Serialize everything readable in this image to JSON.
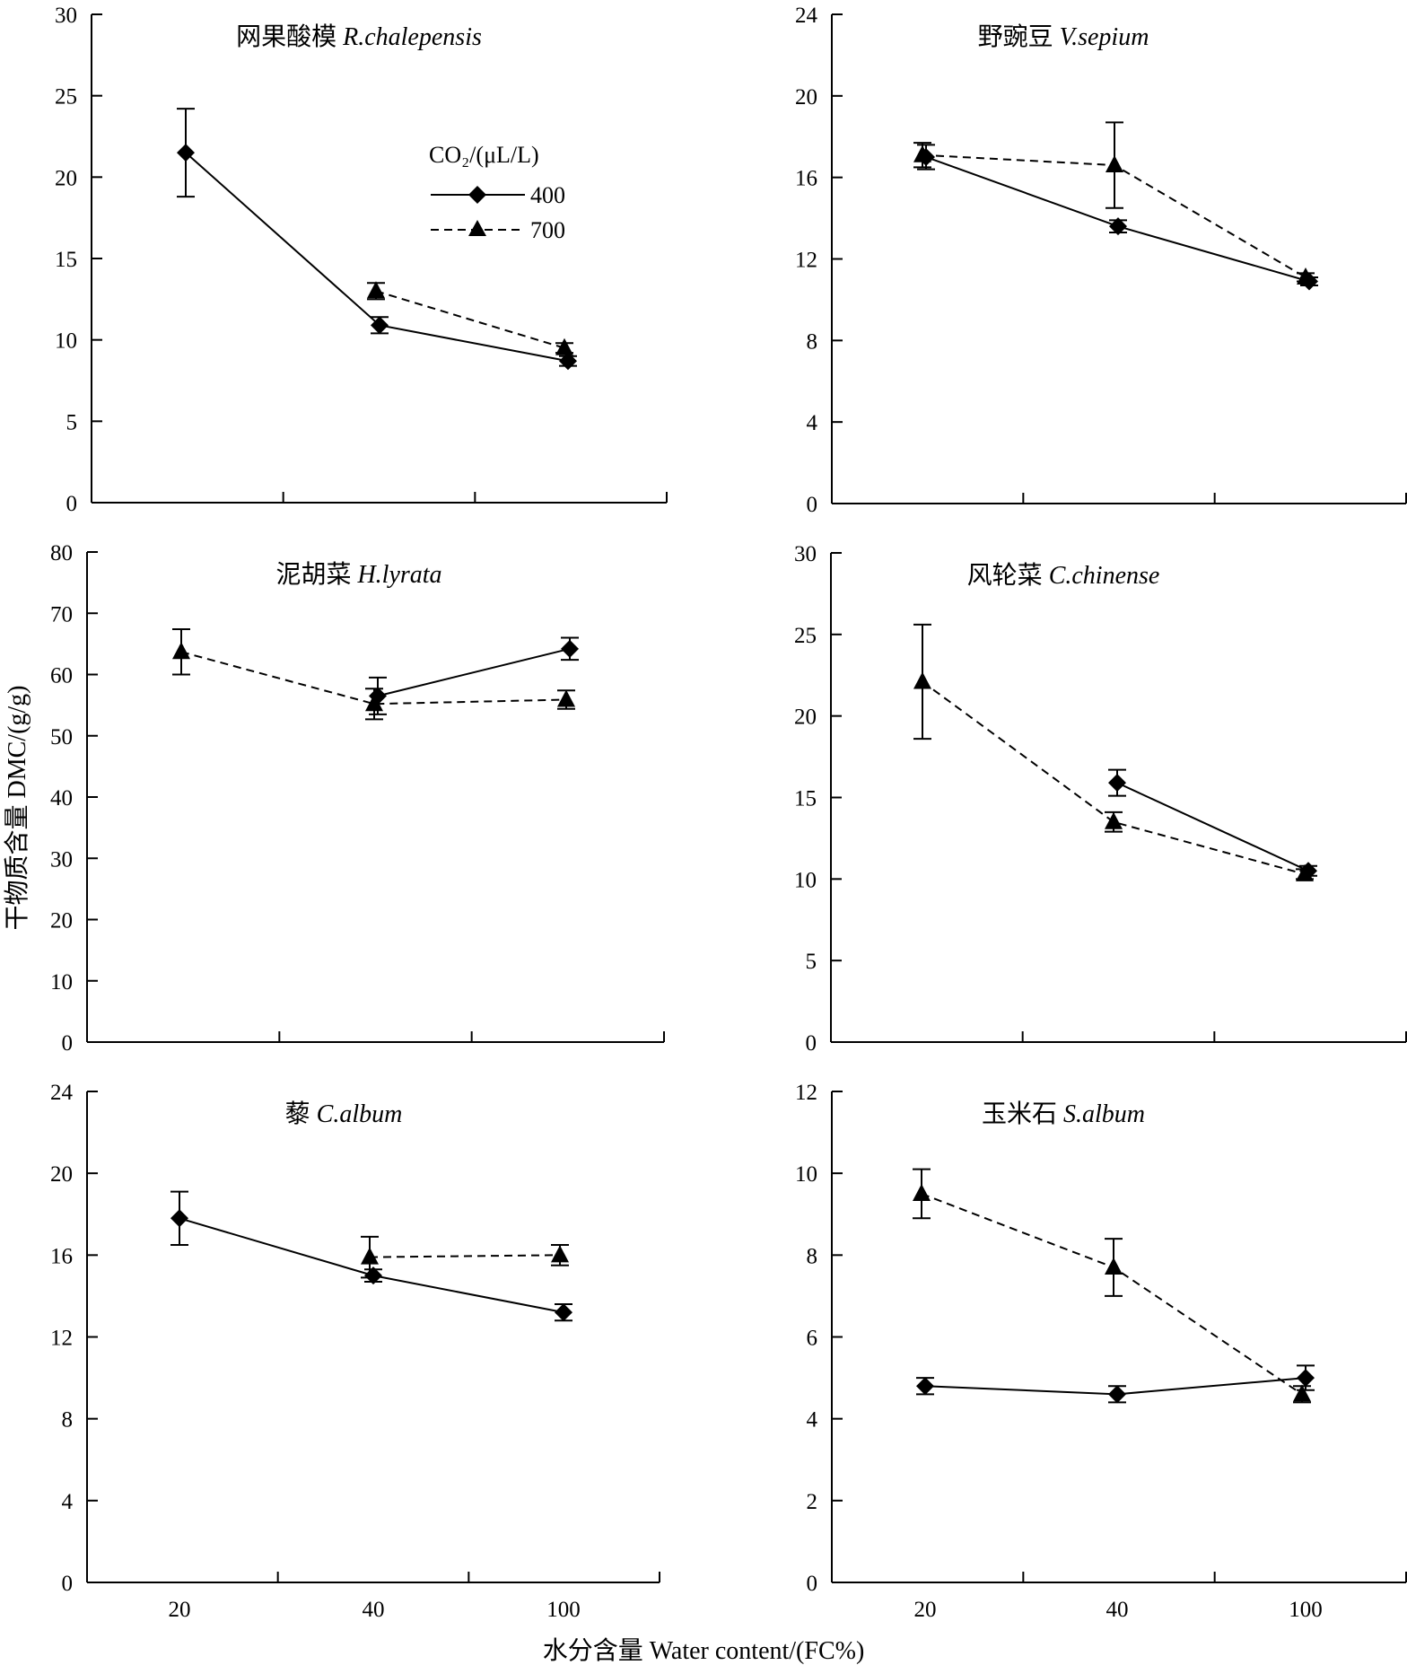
{
  "figure": {
    "ylabel": "干物质含量 DMC/(g/g)",
    "xlabel": "水分含量 Water content/(FC%)"
  },
  "legend": {
    "title": "CO₂/(μL/L)",
    "items": [
      {
        "label": "400",
        "marker": "diamond",
        "line": "solid"
      },
      {
        "label": "700",
        "marker": "triangle",
        "line": "dashed"
      }
    ]
  },
  "colors": {
    "marks": "#000000",
    "background": "#ffffff"
  },
  "chart_data": [
    {
      "type": "line",
      "title_cn": "网果酸模",
      "title_latin": "R.chalepensis",
      "categories": [
        "20",
        "40",
        "100"
      ],
      "ylim": [
        0,
        30
      ],
      "yticks": [
        0,
        5,
        10,
        15,
        20,
        25,
        30
      ],
      "series": [
        {
          "name": "400",
          "values": [
            21.5,
            10.9,
            8.7
          ],
          "errors": [
            2.7,
            0.5,
            0.3
          ]
        },
        {
          "name": "700",
          "values": [
            null,
            13.0,
            9.5
          ],
          "errors": [
            null,
            0.5,
            0.3
          ]
        }
      ]
    },
    {
      "type": "line",
      "title_cn": "野豌豆",
      "title_latin": "V.sepium",
      "categories": [
        "20",
        "40",
        "100"
      ],
      "ylim": [
        0,
        24
      ],
      "yticks": [
        0,
        4,
        8,
        12,
        16,
        20,
        24
      ],
      "series": [
        {
          "name": "400",
          "values": [
            17.0,
            13.6,
            10.9
          ],
          "errors": [
            0.6,
            0.3,
            0.2
          ]
        },
        {
          "name": "700",
          "values": [
            17.1,
            16.6,
            11.1
          ],
          "errors": [
            0.6,
            2.1,
            0.2
          ]
        }
      ]
    },
    {
      "type": "line",
      "title_cn": "泥胡菜",
      "title_latin": "H.lyrata",
      "categories": [
        "20",
        "40",
        "100"
      ],
      "ylim": [
        0,
        80
      ],
      "yticks": [
        0,
        10,
        20,
        30,
        40,
        50,
        60,
        70,
        80
      ],
      "series": [
        {
          "name": "400",
          "values": [
            null,
            56.5,
            64.2
          ],
          "errors": [
            null,
            3.0,
            1.8
          ]
        },
        {
          "name": "700",
          "values": [
            63.7,
            55.2,
            55.9
          ],
          "errors": [
            3.7,
            2.5,
            1.5
          ]
        }
      ]
    },
    {
      "type": "line",
      "title_cn": "风轮菜",
      "title_latin": "C.chinense",
      "categories": [
        "20",
        "40",
        "100"
      ],
      "ylim": [
        0,
        30
      ],
      "yticks": [
        0,
        5,
        10,
        15,
        20,
        25,
        30
      ],
      "series": [
        {
          "name": "400",
          "values": [
            null,
            15.9,
            10.5
          ],
          "errors": [
            null,
            0.8,
            0.3
          ]
        },
        {
          "name": "700",
          "values": [
            22.1,
            13.5,
            10.3
          ],
          "errors": [
            3.5,
            0.6,
            0.3
          ]
        }
      ]
    },
    {
      "type": "line",
      "title_cn": "藜",
      "title_latin": "C.album",
      "categories": [
        "20",
        "40",
        "100"
      ],
      "ylim": [
        0,
        24
      ],
      "yticks": [
        0,
        4,
        8,
        12,
        16,
        20,
        24
      ],
      "series": [
        {
          "name": "400",
          "values": [
            17.8,
            15.0,
            13.2
          ],
          "errors": [
            1.3,
            0.3,
            0.4
          ]
        },
        {
          "name": "700",
          "values": [
            null,
            15.9,
            16.0
          ],
          "errors": [
            null,
            1.0,
            0.5
          ]
        }
      ]
    },
    {
      "type": "line",
      "title_cn": "玉米石",
      "title_latin": "S.album",
      "categories": [
        "20",
        "40",
        "100"
      ],
      "ylim": [
        0,
        12
      ],
      "yticks": [
        0,
        2,
        4,
        6,
        8,
        10,
        12
      ],
      "series": [
        {
          "name": "400",
          "values": [
            4.8,
            4.6,
            5.0
          ],
          "errors": [
            0.2,
            0.2,
            0.3
          ]
        },
        {
          "name": "700",
          "values": [
            9.5,
            7.7,
            4.6
          ],
          "errors": [
            0.6,
            0.7,
            0.2
          ]
        }
      ]
    }
  ]
}
